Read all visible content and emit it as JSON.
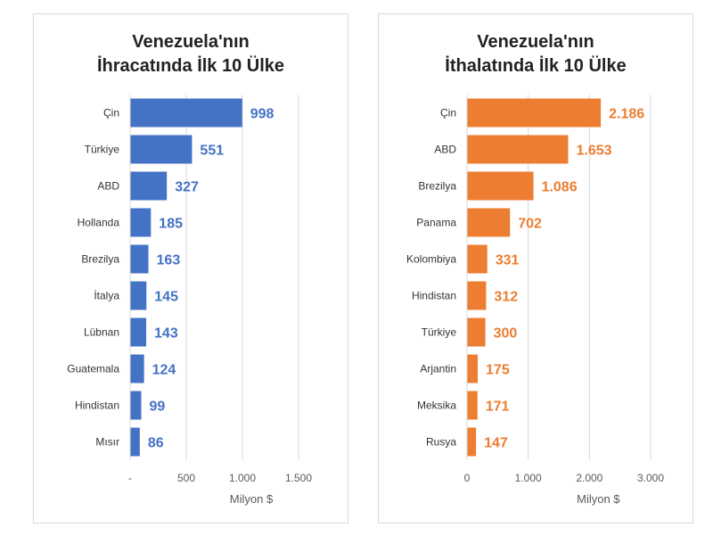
{
  "chart_data": [
    {
      "type": "bar",
      "orientation": "horizontal",
      "title": "Venezuela'nın\nİhracatında İlk 10 Ülke",
      "categories": [
        "Çin",
        "Türkiye",
        "ABD",
        "Hollanda",
        "Brezilya",
        "İtalya",
        "Lübnan",
        "Guatemala",
        "Hindistan",
        "Mısır"
      ],
      "values": [
        998,
        551,
        327,
        185,
        163,
        145,
        143,
        124,
        99,
        86
      ],
      "data_labels": [
        "998",
        "551",
        "327",
        "185",
        "163",
        "145",
        "143",
        "124",
        "99",
        "86"
      ],
      "xlabel": "Milyon $",
      "xlim": [
        0,
        1500
      ],
      "xticks": [
        0,
        500,
        1000,
        1500
      ],
      "xtick_labels": [
        "-",
        "500",
        "1.000",
        "1.500"
      ],
      "grid": true,
      "color": "#4472C4"
    },
    {
      "type": "bar",
      "orientation": "horizontal",
      "title": "Venezuela'nın\nİthalatında İlk 10 Ülke",
      "categories": [
        "Çin",
        "ABD",
        "Brezilya",
        "Panama",
        "Kolombiya",
        "Hindistan",
        "Türkiye",
        "Arjantin",
        "Meksika",
        "Rusya"
      ],
      "values": [
        2186,
        1653,
        1086,
        702,
        331,
        312,
        300,
        175,
        171,
        147
      ],
      "data_labels": [
        "2.186",
        "1.653",
        "1.086",
        "702",
        "331",
        "312",
        "300",
        "175",
        "171",
        "147"
      ],
      "xlabel": "Milyon $",
      "xlim": [
        0,
        3000
      ],
      "xticks": [
        0,
        1000,
        2000,
        3000
      ],
      "xtick_labels": [
        "0",
        "1.000",
        "2.000",
        "3.000"
      ],
      "grid": true,
      "color": "#ED7D31"
    }
  ]
}
